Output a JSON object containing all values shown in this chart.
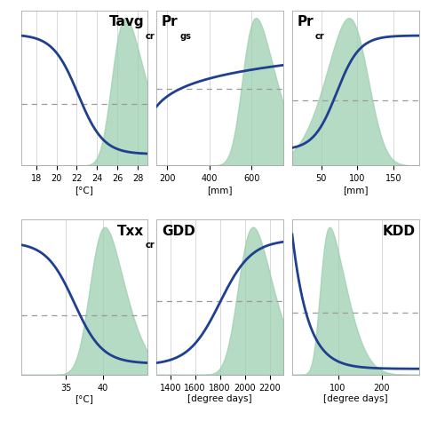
{
  "panels": [
    {
      "title": "Tavg",
      "title_sub": "cr",
      "title_pos": "right",
      "xlabel": "[°C]",
      "xticks": [
        18,
        20,
        22,
        24,
        26,
        28
      ],
      "xlim": [
        16.5,
        29.0
      ],
      "curve_type": "decreasing_sigmoid",
      "curve_params": [
        0.45,
        10,
        0.88,
        0.08
      ],
      "hline_y": 0.42,
      "density_mu": 0.72,
      "density_sigma": 0.22,
      "density_skew": 3.0
    },
    {
      "title": "Pr",
      "title_sub": "gs",
      "title_pos": "left",
      "xlabel": "[mm]",
      "xticks": [
        200,
        400,
        600
      ],
      "xlim": [
        150,
        750
      ],
      "curve_type": "log_rise",
      "curve_params": [
        0.3,
        0.7,
        0.4,
        0.68
      ],
      "hline_y": 0.52,
      "density_mu": 0.68,
      "density_sigma": 0.22,
      "density_skew": 3.0
    },
    {
      "title": "Pr",
      "title_sub": "cr",
      "title_pos": "left",
      "xlabel": "[mm]",
      "xticks": [
        50,
        100,
        150
      ],
      "xlim": [
        10,
        185
      ],
      "curve_type": "sigmoid_up",
      "curve_params": [
        0.35,
        11,
        0.12,
        0.88
      ],
      "hline_y": 0.44,
      "density_mu": 0.58,
      "density_sigma": 0.25,
      "density_skew": -2.0
    },
    {
      "title": "Txx",
      "title_sub": "cr",
      "title_pos": "right",
      "xlabel": "[°C]",
      "xticks": [
        35,
        40
      ],
      "xlim": [
        29.0,
        46.0
      ],
      "curve_type": "decreasing_sigmoid",
      "curve_params": [
        0.42,
        9,
        0.88,
        0.08
      ],
      "hline_y": 0.4,
      "density_mu": 0.55,
      "density_sigma": 0.22,
      "density_skew": 2.5
    },
    {
      "title": "GDD",
      "title_sub": "",
      "title_pos": "left",
      "xlabel": "[degree days]",
      "xticks": [
        1400,
        1600,
        1800,
        2000,
        2200
      ],
      "xlim": [
        1290,
        2310
      ],
      "curve_type": "sigmoid_up",
      "curve_params": [
        0.5,
        8,
        0.08,
        0.9
      ],
      "hline_y": 0.5,
      "density_mu": 0.65,
      "density_sigma": 0.22,
      "density_skew": 2.5
    },
    {
      "title": "KDD",
      "title_sub": "",
      "title_pos": "right",
      "xlabel": "[degree days]",
      "xticks": [
        100,
        200
      ],
      "xlim": [
        -5,
        285
      ],
      "curve_type": "decreasing_exp",
      "curve_params": [
        8.0,
        0.95,
        0.04
      ],
      "hline_y": 0.42,
      "density_mu": 0.22,
      "density_sigma": 0.18,
      "density_skew": 4.0
    }
  ],
  "line_color": "#1f3f8f",
  "fill_color": "#9ecfb0",
  "fill_alpha": 0.75,
  "hline_color": "#999999",
  "grid_color": "#bbbbbb",
  "line_width": 2.0,
  "tick_fontsize": 7.0,
  "label_fontsize": 7.5,
  "title_fontsize": 11
}
